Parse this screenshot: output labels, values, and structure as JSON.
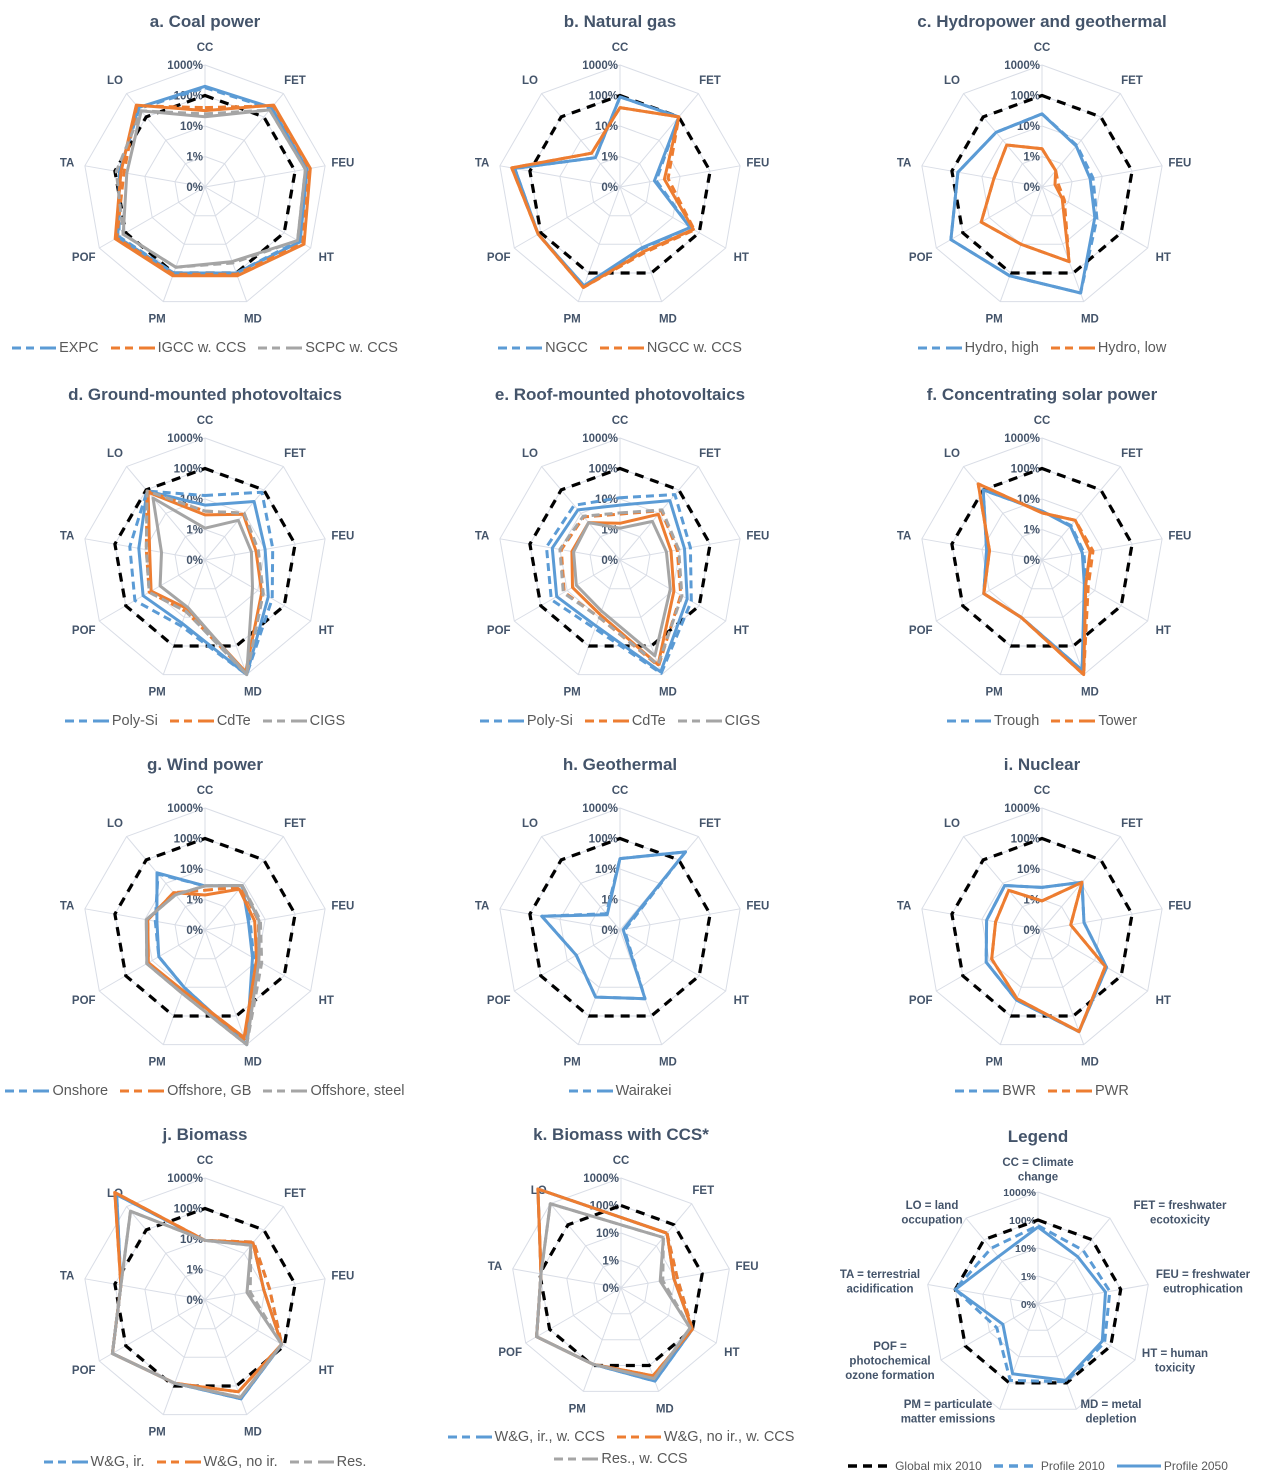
{
  "axes": [
    "CC",
    "FET",
    "FEU",
    "HT",
    "MD",
    "PM",
    "POF",
    "TA",
    "LO"
  ],
  "ticks": [
    "0%",
    "1%",
    "10%",
    "100%",
    "1000%"
  ],
  "scale": "log",
  "colors": {
    "blue": "#5b9bd5",
    "orange": "#ed7d31",
    "gray": "#a5a5a5",
    "global": "#000000",
    "text": "#44546a",
    "grid": "#d9dde6"
  },
  "chart_data": [
    {
      "type": "radar",
      "title": "a. Coal power",
      "global_mix_2010": [
        100,
        100,
        100,
        100,
        100,
        100,
        100,
        100,
        100
      ],
      "series": [
        {
          "name": "EXPC",
          "color": "#5b9bd5",
          "profile_2010": [
            180,
            230,
            230,
            350,
            100,
            100,
            180,
            70,
            230
          ],
          "profile_2050": [
            200,
            250,
            250,
            400,
            100,
            100,
            200,
            70,
            250
          ]
        },
        {
          "name": "IGCC w. CCS",
          "color": "#ed7d31",
          "profile_2010": [
            40,
            300,
            300,
            500,
            110,
            110,
            220,
            50,
            300
          ],
          "profile_2050": [
            32,
            320,
            320,
            560,
            125,
            125,
            250,
            63,
            320
          ]
        },
        {
          "name": "SCPC w. CCS",
          "color": "#a5a5a5",
          "profile_2010": [
            25,
            200,
            220,
            320,
            45,
            63,
            125,
            90,
            180
          ],
          "profile_2050": [
            20,
            200,
            220,
            320,
            40,
            63,
            125,
            40,
            180
          ]
        }
      ]
    },
    {
      "type": "radar",
      "title": "b. Natural gas",
      "global_mix_2010": [
        100,
        100,
        100,
        100,
        100,
        100,
        100,
        100,
        100
      ],
      "series": [
        {
          "name": "NGCC",
          "color": "#5b9bd5",
          "profile_2010": [
            90,
            100,
            1.6,
            45,
            14,
            280,
            125,
            320,
            1.8
          ],
          "profile_2050": [
            90,
            100,
            1.4,
            45,
            13,
            280,
            125,
            320,
            1.8
          ]
        },
        {
          "name": "NGCC w. CCS",
          "color": "#ed7d31",
          "profile_2010": [
            40,
            100,
            4,
            65,
            20,
            320,
            125,
            400,
            2.8
          ],
          "profile_2050": [
            40,
            100,
            3,
            60,
            18,
            320,
            125,
            400,
            2.8
          ]
        }
      ]
    },
    {
      "type": "radar",
      "title": "c. Hydropower and geothermal",
      "global_mix_2010": [
        100,
        100,
        100,
        100,
        100,
        100,
        100,
        100,
        100
      ],
      "series": [
        {
          "name": "Hydro, high",
          "color": "#5b9bd5",
          "profile_2010": [
            25,
            6,
            5,
            12,
            500,
            125,
            280,
            63,
            22
          ],
          "profile_2050": [
            25,
            5.6,
            4,
            10,
            500,
            125,
            280,
            63,
            22
          ]
        },
        {
          "name": "Hydro, low",
          "color": "#ed7d31",
          "profile_2010": [
            1.8,
            0.5,
            0.35,
            0.7,
            40,
            10,
            20,
            4,
            6.3
          ],
          "profile_2050": [
            1.8,
            0.5,
            0.27,
            0.58,
            40,
            10,
            20,
            4,
            6.3
          ]
        }
      ]
    },
    {
      "type": "radar",
      "title": "d. Ground-mounted photovoltaics",
      "global_mix_2010": [
        100,
        100,
        100,
        100,
        100,
        100,
        100,
        100,
        100
      ],
      "series": [
        {
          "name": "Poly-Si",
          "color": "#5b9bd5",
          "profile_2010": [
            13,
            80,
            18,
            35,
            1000,
            20,
            45,
            32,
            90
          ],
          "profile_2050": [
            6.3,
            32,
            10,
            25,
            1000,
            16,
            22,
            16,
            90
          ]
        },
        {
          "name": "CdTe",
          "color": "#ed7d31",
          "profile_2010": [
            4,
            10,
            5.6,
            16,
            900,
            6.3,
            13,
            9,
            90
          ],
          "profile_2050": [
            3,
            9,
            5,
            14,
            800,
            5,
            11,
            7,
            80
          ]
        },
        {
          "name": "CIGS",
          "color": "#a5a5a5",
          "profile_2010": [
            4,
            10,
            6,
            16,
            1000,
            6.3,
            13,
            9,
            90
          ],
          "profile_2050": [
            1.1,
            5,
            3.5,
            6.3,
            1000,
            4.5,
            5,
            2.8,
            45
          ]
        }
      ]
    },
    {
      "type": "radar",
      "title": "e. Roof-mounted photovoltaics",
      "global_mix_2010": [
        100,
        100,
        100,
        100,
        100,
        100,
        100,
        100,
        100
      ],
      "series": [
        {
          "name": "Poly-Si",
          "color": "#5b9bd5",
          "profile_2010": [
            11,
            63,
            22,
            50,
            900,
            25,
            40,
            28,
            22
          ],
          "profile_2050": [
            6.3,
            35,
            14,
            35,
            800,
            20,
            25,
            18,
            14
          ]
        },
        {
          "name": "CdTe",
          "color": "#ed7d31",
          "profile_2010": [
            3.2,
            13,
            8,
            20,
            500,
            10,
            13,
            9,
            7
          ],
          "profile_2050": [
            1.6,
            9,
            5,
            11,
            450,
            8,
            6.3,
            4,
            4
          ]
        },
        {
          "name": "CIGS",
          "color": "#a5a5a5",
          "profile_2010": [
            3.5,
            14,
            9,
            22,
            450,
            10,
            14,
            10,
            7.5
          ],
          "profile_2050": [
            1.1,
            4.5,
            3.5,
            8,
            220,
            6,
            4.5,
            3.5,
            4
          ]
        }
      ]
    },
    {
      "type": "radar",
      "title": "f. Concentrating solar power",
      "global_mix_2010": [
        100,
        100,
        100,
        100,
        100,
        100,
        100,
        100,
        100
      ],
      "series": [
        {
          "name": "Trough",
          "color": "#5b9bd5",
          "profile_2010": [
            4,
            3,
            2.5,
            4.5,
            700,
            10,
            16,
            7,
            100
          ],
          "profile_2050": [
            4,
            2.8,
            2.2,
            4,
            700,
            10,
            16,
            7,
            100
          ]
        },
        {
          "name": "Tower",
          "color": "#ed7d31",
          "profile_2010": [
            3.5,
            5,
            5,
            5.6,
            1000,
            10,
            16,
            5.6,
            180
          ],
          "profile_2050": [
            3.5,
            5,
            4,
            4.5,
            1000,
            10,
            16,
            5.6,
            180
          ]
        }
      ]
    },
    {
      "type": "radar",
      "title": "g. Wind power",
      "global_mix_2010": [
        100,
        100,
        100,
        100,
        100,
        100,
        100,
        100,
        100
      ],
      "series": [
        {
          "name": "Onshore",
          "color": "#5b9bd5",
          "profile_2010": [
            2.8,
            8,
            3.2,
            7,
            1000,
            10,
            5.6,
            4.5,
            25
          ],
          "profile_2050": [
            2.8,
            8,
            2.8,
            6.3,
            1000,
            10,
            5.6,
            4,
            28
          ]
        },
        {
          "name": "Offshore, GB",
          "color": "#ed7d31",
          "profile_2010": [
            2,
            7,
            6,
            11,
            700,
            14,
            14,
            8,
            4
          ],
          "profile_2050": [
            1.4,
            5.6,
            4.5,
            9,
            560,
            13,
            14,
            8,
            4
          ]
        },
        {
          "name": "Offshore, steel",
          "color": "#a5a5a5",
          "profile_2010": [
            2.8,
            8,
            7,
            14,
            1000,
            16,
            16,
            9,
            3.2
          ],
          "profile_2050": [
            2.8,
            8,
            6.3,
            11,
            1000,
            16,
            16,
            9,
            3.2
          ]
        }
      ]
    },
    {
      "type": "radar",
      "title": "h. Geothermal",
      "global_mix_2010": [
        100,
        100,
        100,
        100,
        100,
        100,
        100,
        100,
        100
      ],
      "series": [
        {
          "name": "Wairakei",
          "color": "#5b9bd5",
          "profile_2010": [
            22,
            220,
            0.15,
            0.16,
            25,
            22,
            4.5,
            40,
            0.5
          ],
          "profile_2050": [
            22,
            220,
            0.13,
            0.14,
            25,
            22,
            4.5,
            40,
            0.45
          ]
        }
      ]
    },
    {
      "type": "radar",
      "title": "i. Nuclear",
      "global_mix_2010": [
        100,
        100,
        100,
        100,
        100,
        100,
        100,
        100,
        100
      ],
      "series": [
        {
          "name": "BWR",
          "color": "#5b9bd5",
          "profile_2010": [
            2.5,
            11,
            2.5,
            28,
            350,
            28,
            13,
            7,
            8
          ],
          "profile_2050": [
            2.5,
            11,
            2.5,
            28,
            350,
            28,
            13,
            7,
            8
          ]
        },
        {
          "name": "PWR",
          "color": "#ed7d31",
          "profile_2010": [
            0.9,
            11,
            0.9,
            25,
            350,
            25,
            8,
            3.5,
            5
          ],
          "profile_2050": [
            0.9,
            11,
            0.9,
            25,
            350,
            25,
            8,
            3.5,
            5
          ]
        }
      ]
    },
    {
      "type": "radar",
      "title": "j. Biomass",
      "global_mix_2010": [
        100,
        100,
        100,
        100,
        100,
        100,
        100,
        100,
        100
      ],
      "series": [
        {
          "name": "W&G, ir.",
          "color": "#5b9bd5",
          "profile_2010": [
            9,
            30,
            14,
            80,
            280,
            80,
            320,
            63,
            3200
          ],
          "profile_2050": [
            9,
            28,
            9,
            80,
            280,
            80,
            320,
            63,
            3200
          ]
        },
        {
          "name": "W&G, no ir.",
          "color": "#ed7d31",
          "profile_2010": [
            9,
            30,
            14,
            80,
            160,
            80,
            320,
            63,
            4000
          ],
          "profile_2050": [
            9,
            28,
            9,
            80,
            160,
            80,
            320,
            63,
            4000
          ]
        },
        {
          "name": "Res.",
          "color": "#a5a5a5",
          "profile_2010": [
            9,
            22,
            3.2,
            80,
            250,
            80,
            320,
            63,
            630
          ],
          "profile_2050": [
            9,
            22,
            2.5,
            80,
            250,
            80,
            320,
            63,
            630
          ]
        }
      ]
    },
    {
      "type": "radar",
      "title": "k. Biomass with CCS*",
      "global_mix_2010": [
        100,
        100,
        100,
        100,
        100,
        100,
        100,
        100,
        100
      ],
      "series": [
        {
          "name": "W&G, ir., w. CCS",
          "color": "#5b9bd5",
          "profile_2010": [
            null,
            40,
            12,
            100,
            400,
            90,
            350,
            90,
            5000
          ],
          "profile_2050": [
            null,
            40,
            9,
            100,
            400,
            90,
            350,
            90,
            5000
          ]
        },
        {
          "name": "W&G, no ir., w. CCS",
          "color": "#ed7d31",
          "profile_2010": [
            null,
            40,
            12,
            100,
            250,
            90,
            350,
            90,
            5000
          ],
          "profile_2050": [
            null,
            40,
            9,
            100,
            250,
            90,
            350,
            90,
            5000
          ]
        },
        {
          "name": "Res., w. CCS",
          "color": "#a5a5a5",
          "profile_2010": [
            null,
            25,
            3.5,
            80,
            320,
            90,
            350,
            90,
            1000
          ],
          "profile_2050": [
            null,
            25,
            2.8,
            80,
            320,
            90,
            350,
            90,
            1000
          ]
        }
      ]
    },
    {
      "type": "radar",
      "title": "Legend",
      "global_mix_2010": [
        100,
        100,
        100,
        100,
        100,
        100,
        100,
        100,
        100
      ],
      "axis_descriptions": [
        [
          "CC = Climate",
          "change"
        ],
        [
          "FET = freshwater",
          "ecotoxicity"
        ],
        [
          "FEU = freshwater",
          "eutrophication"
        ],
        [
          "HT = human",
          "toxicity"
        ],
        [
          "MD = metal",
          "depletion"
        ],
        [
          "PM = particulate",
          "matter emissions"
        ],
        [
          "POF =",
          "photochemical",
          "ozone formation"
        ],
        [
          "TA = terrestrial",
          "acidification"
        ],
        [
          "LO = land",
          "occupation"
        ]
      ],
      "legend_entries": [
        "Global mix 2010",
        "Profile 2010",
        "Profile 2050"
      ],
      "series": [
        {
          "name": "Profile",
          "color": "#5b9bd5",
          "profile_2010": [
            63,
            32,
            40,
            56,
            90,
            80,
            5,
            100,
            40
          ],
          "profile_2050": [
            56,
            16,
            28,
            45,
            80,
            45,
            2.8,
            100,
            16
          ]
        }
      ]
    }
  ]
}
